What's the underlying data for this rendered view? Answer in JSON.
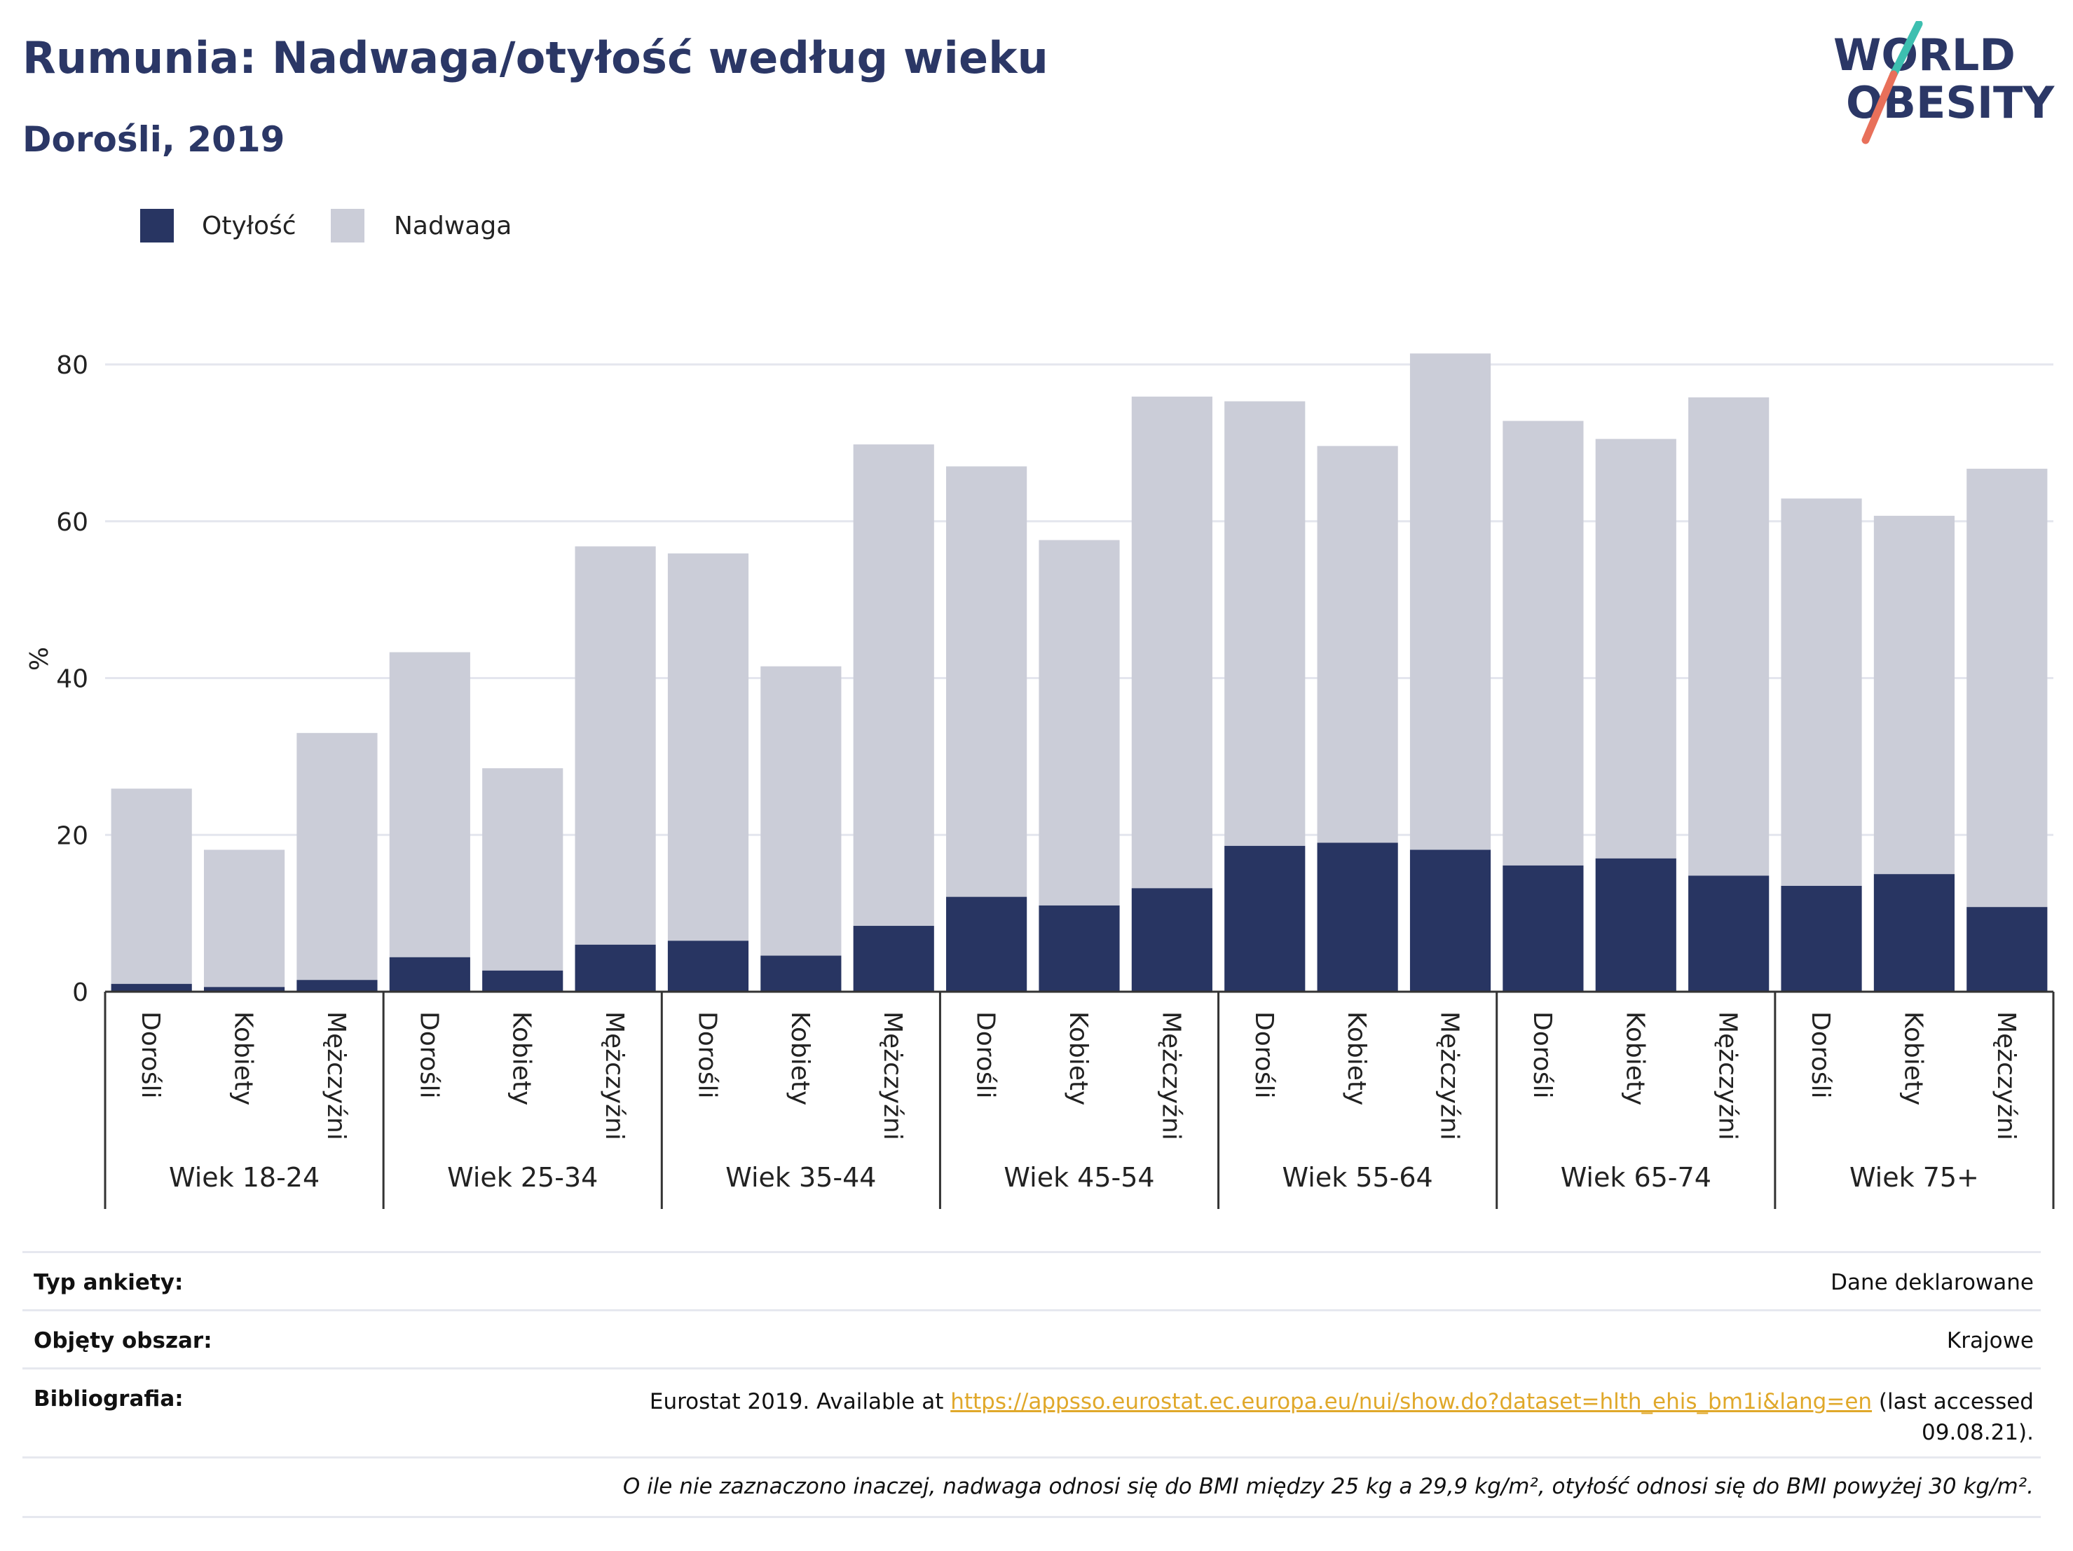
{
  "header": {
    "title": "Rumunia: Nadwaga/otyłość według wieku",
    "subtitle": "Dorośli, 2019"
  },
  "logo": {
    "line1": "WORLD",
    "line2": "OBESITY",
    "colors": {
      "text": "#2b3766",
      "slash_top": "#3dbfb0",
      "slash_bottom": "#e8705a"
    }
  },
  "colors": {
    "obesity": "#283562",
    "overweight": "#cbcdd8",
    "grid": "#e4e6ee",
    "axis": "#333333",
    "title": "#2b3766",
    "link": "#e0a82a"
  },
  "legend": {
    "obesity_label": "Otyłość",
    "overweight_label": "Nadwaga"
  },
  "chart_data": {
    "type": "bar",
    "stacked": true,
    "ylabel": "%",
    "ylim": [
      0,
      80
    ],
    "yticks": [
      0,
      20,
      40,
      60,
      80
    ],
    "grid": true,
    "legend_position": "top-left",
    "groups": [
      "Wiek 18-24",
      "Wiek 25-34",
      "Wiek 35-44",
      "Wiek 45-54",
      "Wiek 55-64",
      "Wiek 65-74",
      "Wiek 75+"
    ],
    "subcategories": [
      "Dorośli",
      "Kobiety",
      "Mężczyźni"
    ],
    "series": [
      {
        "name": "Otyłość",
        "values": [
          1.0,
          0.6,
          1.5,
          4.4,
          2.7,
          6.0,
          6.5,
          4.6,
          8.4,
          12.1,
          11.0,
          13.2,
          18.6,
          19.0,
          18.1,
          16.1,
          17.0,
          14.8,
          13.5,
          15.0,
          10.8
        ]
      },
      {
        "name": "Nadwaga",
        "values": [
          24.9,
          17.5,
          31.5,
          38.9,
          25.8,
          50.8,
          49.4,
          36.9,
          61.4,
          54.9,
          46.6,
          62.7,
          56.7,
          50.6,
          63.3,
          56.7,
          53.5,
          61.0,
          49.4,
          45.7,
          55.9
        ]
      }
    ]
  },
  "info": {
    "survey_type_label": "Typ ankiety:",
    "survey_type_value": "Dane deklarowane",
    "coverage_label": "Objęty obszar:",
    "coverage_value": "Krajowe",
    "bibliography_label": "Bibliografia:",
    "bibliography_prefix": "Eurostat 2019. Available at ",
    "bibliography_link": "https://appsso.eurostat.ec.europa.eu/nui/show.do?dataset=hlth_ehis_bm1i&lang=en",
    "bibliography_suffix": " (last accessed",
    "bibliography_date": "09.08.21).",
    "note": "O ile nie zaznaczono inaczej, nadwaga odnosi się do BMI między 25 kg a 29,9 kg/m², otyłość odnosi się do BMI powyżej 30 kg/m²."
  }
}
